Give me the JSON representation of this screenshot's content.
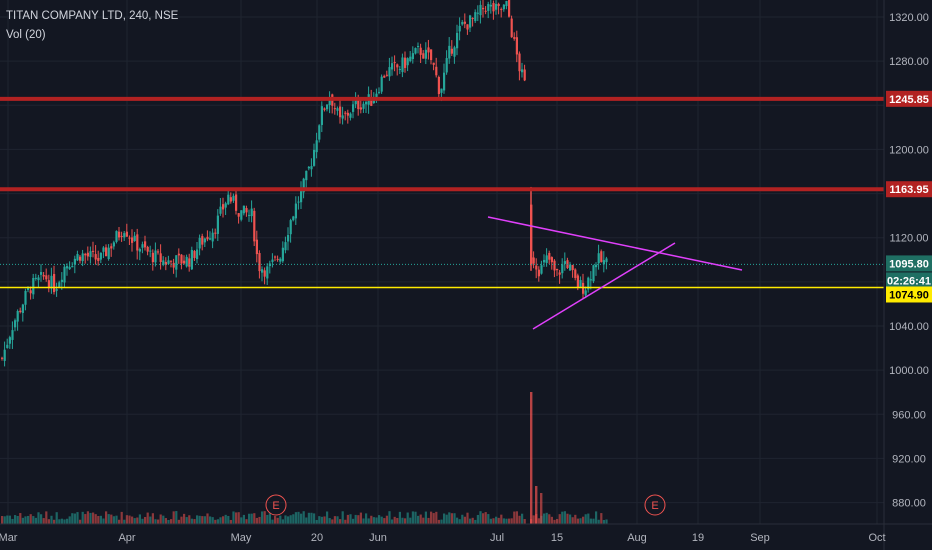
{
  "header": {
    "symbol": "TITAN COMPANY LTD, 240, NSE",
    "indicator": "Vol (20)"
  },
  "colors": {
    "background": "#131722",
    "grid": "#1f2430",
    "up": "#26a69a",
    "down": "#ef5350",
    "resistance": "#b22222",
    "support": "#ffeb00",
    "triangle": "#e040fb",
    "current_price_line": "#26a69a"
  },
  "chart_data": {
    "type": "candlestick",
    "title": "TITAN COMPANY LTD, 240, NSE",
    "ylim": [
      860,
      1335
    ],
    "y_ticks": [
      "1320.00",
      "1280.00",
      "1245.85",
      "1200.00",
      "1163.95",
      "1120.00",
      "1095.80",
      "02:26:41",
      "1074.90",
      "1040.00",
      "1000.00",
      "960.00",
      "920.00",
      "880.00"
    ],
    "x_ticks": [
      "Mar",
      "Apr",
      "May",
      "20",
      "Jun",
      "Jul",
      "15",
      "Aug",
      "19",
      "Sep",
      "Oct"
    ],
    "grid": true,
    "horizontal_levels": [
      {
        "label": "1245.85",
        "value": 1245.85,
        "kind": "resistance"
      },
      {
        "label": "1163.95",
        "value": 1163.95,
        "kind": "resistance"
      },
      {
        "label": "1074.90",
        "value": 1074.9,
        "kind": "support"
      }
    ],
    "current_price": {
      "value": 1095.8,
      "label": "1095.80",
      "countdown": "02:26:41"
    },
    "triangle_lines": [
      {
        "from": [
          "06-Jul",
          1130
        ],
        "to": [
          "23-Aug",
          1087
        ]
      },
      {
        "from": [
          "10-Jul",
          1030
        ],
        "to": [
          "03-Aug",
          1112
        ]
      }
    ],
    "earnings_markers": [
      {
        "date": "May",
        "label": "E"
      },
      {
        "date": "Aug",
        "label": "E"
      }
    ],
    "close_path": [
      {
        "x": 0,
        "y": 1005
      },
      {
        "x": 12,
        "y": 1040
      },
      {
        "x": 22,
        "y": 1060
      },
      {
        "x": 30,
        "y": 1075
      },
      {
        "x": 45,
        "y": 1085
      },
      {
        "x": 55,
        "y": 1075
      },
      {
        "x": 65,
        "y": 1095
      },
      {
        "x": 80,
        "y": 1105
      },
      {
        "x": 100,
        "y": 1100
      },
      {
        "x": 112,
        "y": 1115
      },
      {
        "x": 124,
        "y": 1130
      },
      {
        "x": 135,
        "y": 1115
      },
      {
        "x": 150,
        "y": 1105
      },
      {
        "x": 165,
        "y": 1098
      },
      {
        "x": 190,
        "y": 1100
      },
      {
        "x": 200,
        "y": 1115
      },
      {
        "x": 215,
        "y": 1130
      },
      {
        "x": 228,
        "y": 1158
      },
      {
        "x": 240,
        "y": 1143
      },
      {
        "x": 252,
        "y": 1140
      },
      {
        "x": 258,
        "y": 1095
      },
      {
        "x": 268,
        "y": 1090
      },
      {
        "x": 280,
        "y": 1105
      },
      {
        "x": 292,
        "y": 1140
      },
      {
        "x": 305,
        "y": 1170
      },
      {
        "x": 313,
        "y": 1195
      },
      {
        "x": 320,
        "y": 1230
      },
      {
        "x": 330,
        "y": 1250
      },
      {
        "x": 340,
        "y": 1225
      },
      {
        "x": 355,
        "y": 1240
      },
      {
        "x": 372,
        "y": 1245
      },
      {
        "x": 385,
        "y": 1270
      },
      {
        "x": 400,
        "y": 1275
      },
      {
        "x": 420,
        "y": 1290
      },
      {
        "x": 432,
        "y": 1280
      },
      {
        "x": 440,
        "y": 1252
      },
      {
        "x": 450,
        "y": 1290
      },
      {
        "x": 462,
        "y": 1312
      },
      {
        "x": 475,
        "y": 1318
      },
      {
        "x": 485,
        "y": 1330
      },
      {
        "x": 498,
        "y": 1325
      },
      {
        "x": 507,
        "y": 1330
      },
      {
        "x": 513,
        "y": 1300
      },
      {
        "x": 520,
        "y": 1272
      },
      {
        "x": 527,
        "y": 1252
      }
    ],
    "gap_close_path": [
      {
        "x": 531,
        "y": 1105
      },
      {
        "x": 540,
        "y": 1090
      },
      {
        "x": 548,
        "y": 1102
      },
      {
        "x": 556,
        "y": 1085
      },
      {
        "x": 566,
        "y": 1100
      },
      {
        "x": 576,
        "y": 1078
      },
      {
        "x": 585,
        "y": 1075
      },
      {
        "x": 596,
        "y": 1100
      },
      {
        "x": 608,
        "y": 1096
      }
    ]
  }
}
